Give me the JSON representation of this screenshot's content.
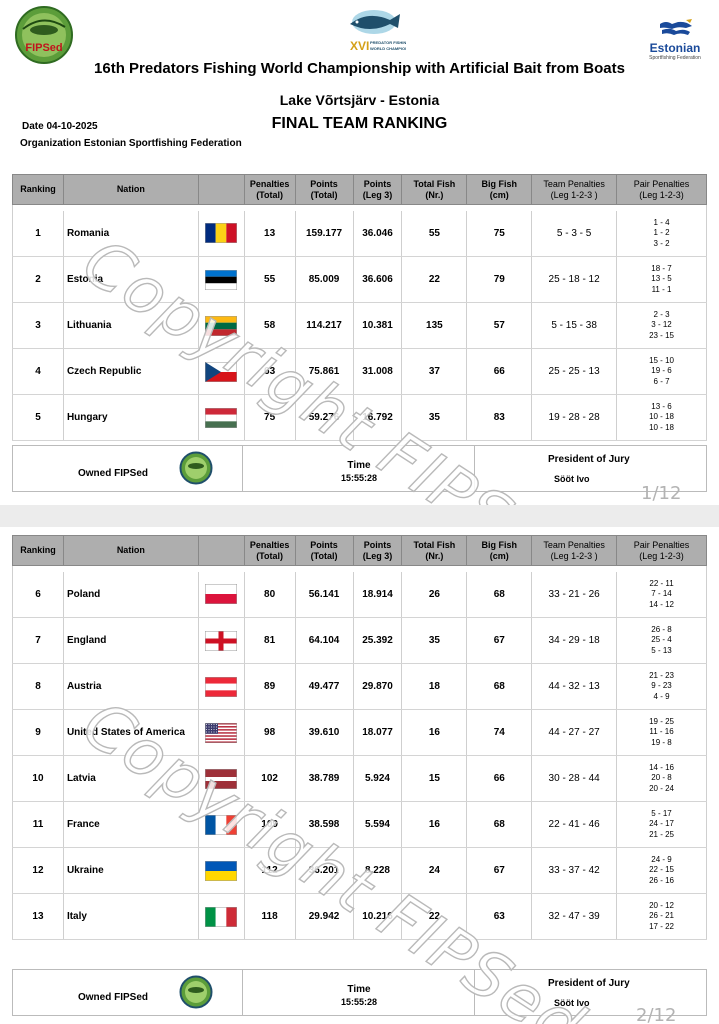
{
  "header": {
    "fipsed_logo_text": "FIPSed",
    "center_logo_text": "XVI PREDATOR FISHING WORLD CHAMPIONSHIP",
    "federation_logo_name": "Estonian",
    "federation_logo_sub": "Sportfishing Federation",
    "title": "16th Predators Fishing World Championship with Artificial Bait from Boats",
    "venue": "Lake Võrtsjärv - Estonia",
    "date": "Date 04-10-2025",
    "ranking_title": "FINAL TEAM RANKING",
    "organization": "Organization  Estonian Sportfishing Federation"
  },
  "columns": {
    "ranking": "Ranking",
    "nation": "Nation",
    "penalties_1": "Penalties",
    "penalties_2": "(Total)",
    "points_1": "Points",
    "points_2": "(Total)",
    "points_leg_1": "Points",
    "points_leg_2": "(Leg 3)",
    "total_fish_1": "Total Fish",
    "total_fish_2": "(Nr.)",
    "big_fish_1": "Big Fish",
    "big_fish_2": "(cm)",
    "team_penalties_1": "Team Penalties",
    "team_penalties_2": "(Leg 1-2-3 )",
    "pair_penalties_1": "Pair Penalties",
    "pair_penalties_2": "(Leg 1-2-3)"
  },
  "page1_rows": [
    {
      "rank": "1",
      "nation": "Romania",
      "flag": "romania",
      "penalties": "13",
      "points_total": "159.177",
      "points_leg3": "36.046",
      "total_fish": "55",
      "big_fish": "75",
      "team_penalties": "5 - 3 - 5",
      "pair_penalties": [
        "1 - 4",
        "1 - 2",
        "3 - 2"
      ]
    },
    {
      "rank": "2",
      "nation": "Estonia",
      "flag": "estonia",
      "penalties": "55",
      "points_total": "85.009",
      "points_leg3": "36.606",
      "total_fish": "22",
      "big_fish": "79",
      "team_penalties": "25 - 18 - 12",
      "pair_penalties": [
        "18 - 7",
        "13 - 5",
        "11 - 1"
      ]
    },
    {
      "rank": "3",
      "nation": "Lithuania",
      "flag": "lithuania",
      "penalties": "58",
      "points_total": "114.217",
      "points_leg3": "10.381",
      "total_fish": "135",
      "big_fish": "57",
      "team_penalties": "5 - 15 - 38",
      "pair_penalties": [
        "2 - 3",
        "3 - 12",
        "23 - 15"
      ]
    },
    {
      "rank": "4",
      "nation": "Czech Republic",
      "flag": "czech",
      "penalties": "63",
      "points_total": "75.861",
      "points_leg3": "31.008",
      "total_fish": "37",
      "big_fish": "66",
      "team_penalties": "25 - 25 - 13",
      "pair_penalties": [
        "15 - 10",
        "19 - 6",
        "6 - 7"
      ]
    },
    {
      "rank": "5",
      "nation": "Hungary",
      "flag": "hungary",
      "penalties": "75",
      "points_total": "59.276",
      "points_leg3": "16.792",
      "total_fish": "35",
      "big_fish": "83",
      "team_penalties": "19 - 28 - 28",
      "pair_penalties": [
        "13 - 6",
        "10 - 18",
        "10 - 18"
      ]
    }
  ],
  "page2_rows": [
    {
      "rank": "6",
      "nation": "Poland",
      "flag": "poland",
      "penalties": "80",
      "points_total": "56.141",
      "points_leg3": "18.914",
      "total_fish": "26",
      "big_fish": "68",
      "team_penalties": "33 - 21 - 26",
      "pair_penalties": [
        "22 - 11",
        "7 - 14",
        "14 - 12"
      ]
    },
    {
      "rank": "7",
      "nation": "England",
      "flag": "england",
      "penalties": "81",
      "points_total": "64.104",
      "points_leg3": "25.392",
      "total_fish": "35",
      "big_fish": "67",
      "team_penalties": "34 - 29 - 18",
      "pair_penalties": [
        "26 - 8",
        "25 - 4",
        "5 - 13"
      ]
    },
    {
      "rank": "8",
      "nation": "Austria",
      "flag": "austria",
      "penalties": "89",
      "points_total": "49.477",
      "points_leg3": "29.870",
      "total_fish": "18",
      "big_fish": "68",
      "team_penalties": "44 - 32 - 13",
      "pair_penalties": [
        "21 - 23",
        "9 - 23",
        "4 - 9"
      ]
    },
    {
      "rank": "9",
      "nation": "United States of America",
      "flag": "usa",
      "penalties": "98",
      "points_total": "39.610",
      "points_leg3": "18.077",
      "total_fish": "16",
      "big_fish": "74",
      "team_penalties": "44 - 27 - 27",
      "pair_penalties": [
        "19 - 25",
        "11 - 16",
        "19 - 8"
      ]
    },
    {
      "rank": "10",
      "nation": "Latvia",
      "flag": "latvia",
      "penalties": "102",
      "points_total": "38.789",
      "points_leg3": "5.924",
      "total_fish": "15",
      "big_fish": "66",
      "team_penalties": "30 - 28 - 44",
      "pair_penalties": [
        "14 - 16",
        "20 - 8",
        "20 - 24"
      ]
    },
    {
      "rank": "11",
      "nation": "France",
      "flag": "france",
      "penalties": "109",
      "points_total": "38.598",
      "points_leg3": "5.594",
      "total_fish": "16",
      "big_fish": "68",
      "team_penalties": "22 - 41 - 46",
      "pair_penalties": [
        "5 - 17",
        "24 - 17",
        "21 - 25"
      ]
    },
    {
      "rank": "12",
      "nation": "Ukraine",
      "flag": "ukraine",
      "penalties": "112",
      "points_total": "36.201",
      "points_leg3": "8.228",
      "total_fish": "24",
      "big_fish": "67",
      "team_penalties": "33 - 37 - 42",
      "pair_penalties": [
        "24 - 9",
        "22 - 15",
        "26 - 16"
      ]
    },
    {
      "rank": "13",
      "nation": "Italy",
      "flag": "italy",
      "penalties": "118",
      "points_total": "29.942",
      "points_leg3": "10.216",
      "total_fish": "22",
      "big_fish": "63",
      "team_penalties": "32 - 47 - 39",
      "pair_penalties": [
        "20 - 12",
        "26 - 21",
        "17 - 22"
      ]
    }
  ],
  "footer": {
    "owned": "Owned FIPSed",
    "time_label": "Time",
    "time_value": "15:55:28",
    "jury_label": "President of Jury",
    "jury_name": "Sööt Ivo"
  },
  "page_numbers": {
    "page1": "1/12",
    "page2": "2/12"
  },
  "watermark": "Copyright FIPSed",
  "colors": {
    "header_bg": "#aeaeae",
    "fipsed_green": "#3f8a2e",
    "estonian_blue": "#1a4a9a"
  }
}
